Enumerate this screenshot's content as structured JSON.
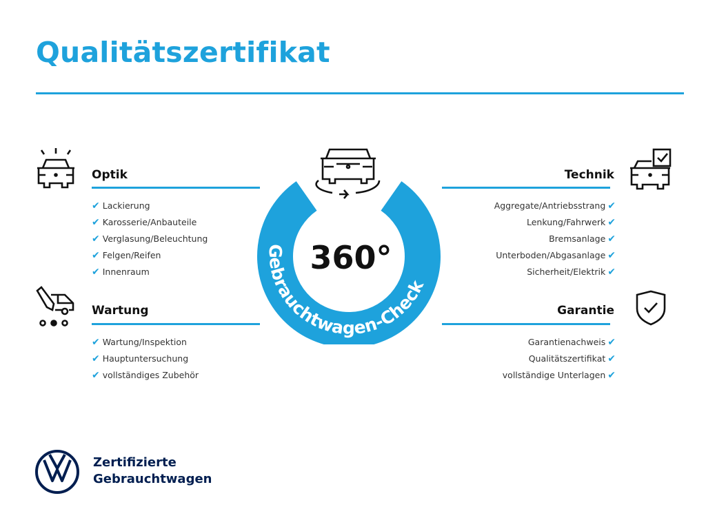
{
  "title": "Qualitätszertifikat",
  "colors": {
    "accent": "#1ea2dc",
    "brand_navy": "#001e50",
    "text": "#111111"
  },
  "center": {
    "big": "360°",
    "ring_text": "Gebrauchtwagen-Check",
    "icon": "car-rotate-icon"
  },
  "sections": {
    "optik": {
      "heading": "Optik",
      "icon": "car-lights-icon",
      "items": [
        "Lackierung",
        "Karosserie/Anbauteile",
        "Verglasung/Beleuchtung",
        "Felgen/Reifen",
        "Innenraum"
      ]
    },
    "wartung": {
      "heading": "Wartung",
      "icon": "car-maintenance-icon",
      "items": [
        "Wartung/Inspektion",
        "Hauptuntersuchung",
        "vollständiges Zubehör"
      ]
    },
    "technik": {
      "heading": "Technik",
      "icon": "car-checkbox-icon",
      "items": [
        "Aggregate/Antriebsstrang",
        "Lenkung/Fahrwerk",
        "Bremsanlage",
        "Unterboden/Abgasanlage",
        "Sicherheit/Elektrik"
      ]
    },
    "garantie": {
      "heading": "Garantie",
      "icon": "shield-check-icon",
      "items": [
        "Garantienachweis",
        "Qualitätszertifikat",
        "vollständige Unterlagen"
      ]
    }
  },
  "check_glyph": "✔",
  "brand": {
    "line1": "Zertifizierte",
    "line2": "Gebrauchtwagen",
    "logo": "vw-logo"
  }
}
